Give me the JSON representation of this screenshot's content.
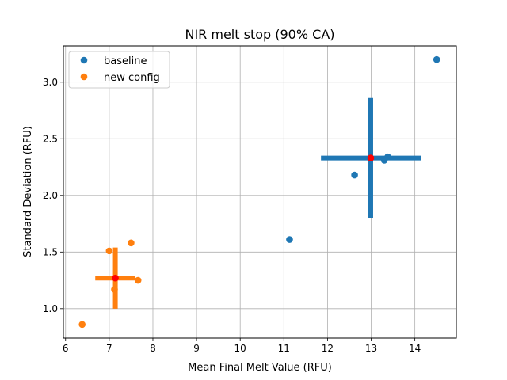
{
  "chart_data": {
    "type": "scatter",
    "title": "NIR melt stop (90% CA)",
    "xlabel": "Mean Final Melt Value (RFU)",
    "ylabel": "Standard Deviation (RFU)",
    "xlim": [
      5.95,
      14.95
    ],
    "ylim": [
      0.74,
      3.32
    ],
    "xticks": [
      6,
      7,
      8,
      9,
      10,
      11,
      12,
      13,
      14
    ],
    "yticks": [
      1.0,
      1.5,
      2.0,
      2.5,
      3.0
    ],
    "xtick_labels": [
      "6",
      "7",
      "8",
      "9",
      "10",
      "11",
      "12",
      "13",
      "14"
    ],
    "ytick_labels": [
      "1.0",
      "1.5",
      "2.0",
      "2.5",
      "3.0"
    ],
    "grid": true,
    "legend_position": "top-left",
    "series": [
      {
        "name": "baseline",
        "color": "#1f77b4",
        "points": [
          {
            "x": 14.5,
            "y": 3.2
          },
          {
            "x": 13.38,
            "y": 2.34
          },
          {
            "x": 13.3,
            "y": 2.31
          },
          {
            "x": 12.62,
            "y": 2.18
          },
          {
            "x": 11.13,
            "y": 1.61
          }
        ],
        "mean": {
          "x": 12.99,
          "y": 2.33
        },
        "error_x": [
          11.85,
          14.15
        ],
        "error_y": [
          1.8,
          2.86
        ]
      },
      {
        "name": "new config",
        "color": "#ff7f0e",
        "points": [
          {
            "x": 7.5,
            "y": 1.58
          },
          {
            "x": 7.0,
            "y": 1.51
          },
          {
            "x": 7.66,
            "y": 1.25
          },
          {
            "x": 7.12,
            "y": 1.17
          },
          {
            "x": 6.38,
            "y": 0.86
          }
        ],
        "mean": {
          "x": 7.14,
          "y": 1.27
        },
        "error_x": [
          6.68,
          7.6
        ],
        "error_y": [
          1.0,
          1.54
        ]
      }
    ],
    "mean_marker_color": "#ff0000"
  }
}
